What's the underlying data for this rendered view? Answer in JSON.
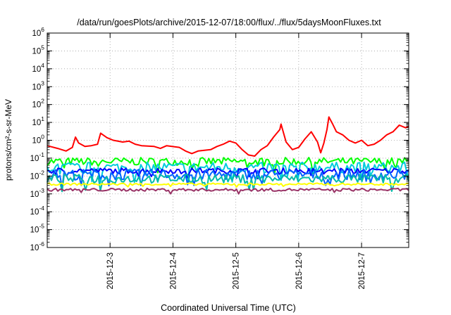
{
  "chart_data": {
    "type": "line",
    "title": "/data/run/goesPlots/archive/2015-12-07/18:00/flux/../flux/5daysMoonFluxes.txt",
    "xlabel": "Coordinated Universal Time (UTC)",
    "ylabel": "protons/cm²-s-sr-MeV",
    "y_scale": "log",
    "ylim_exp": [
      -6,
      6
    ],
    "y_tick_exponents": [
      -6,
      -5,
      -4,
      -3,
      -2,
      -1,
      0,
      1,
      2,
      3,
      4,
      5,
      6
    ],
    "y_tick_labels": [
      "10-6",
      "10-5",
      "10-4",
      "10-3",
      "10-2",
      "10-1",
      "100",
      "101",
      "102",
      "103",
      "104",
      "105",
      "106"
    ],
    "x_unit": "days (UTC)",
    "xlim": [
      "2015-12-02 00:00",
      "2015-12-07 18:00"
    ],
    "x_ticks": [
      {
        "label": "2015-12-3",
        "date": "2015-12-03 00:00"
      },
      {
        "label": "2015-12-4",
        "date": "2015-12-04 00:00"
      },
      {
        "label": "2015-12-5",
        "date": "2015-12-05 00:00"
      },
      {
        "label": "2015-12-6",
        "date": "2015-12-06 00:00"
      },
      {
        "label": "2015-12-7",
        "date": "2015-12-07 00:00"
      }
    ],
    "grid": true,
    "legend": "none",
    "series": [
      {
        "color": "#ff0000",
        "points": [
          [
            "2015-12-02 00:00",
            0.5
          ],
          [
            "2015-12-02 04:00",
            0.35
          ],
          [
            "2015-12-02 07:12",
            0.25
          ],
          [
            "2015-12-02 09:36",
            0.4
          ],
          [
            "2015-12-02 10:48",
            1.5
          ],
          [
            "2015-12-02 12:00",
            0.7
          ],
          [
            "2015-12-02 14:24",
            0.45
          ],
          [
            "2015-12-02 16:48",
            0.5
          ],
          [
            "2015-12-02 19:12",
            0.6
          ],
          [
            "2015-12-02 20:24",
            2.5
          ],
          [
            "2015-12-02 22:48",
            1.4
          ],
          [
            "2015-12-03 01:12",
            1.0
          ],
          [
            "2015-12-03 04:48",
            0.8
          ],
          [
            "2015-12-03 07:12",
            0.9
          ],
          [
            "2015-12-03 09:36",
            0.6
          ],
          [
            "2015-12-03 12:00",
            0.5
          ],
          [
            "2015-12-03 16:48",
            0.45
          ],
          [
            "2015-12-03 19:12",
            0.35
          ],
          [
            "2015-12-03 21:36",
            0.5
          ],
          [
            "2015-12-04 02:24",
            0.4
          ],
          [
            "2015-12-04 04:48",
            0.25
          ],
          [
            "2015-12-04 07:12",
            0.18
          ],
          [
            "2015-12-04 09:36",
            0.25
          ],
          [
            "2015-12-04 14:24",
            0.3
          ],
          [
            "2015-12-04 16:48",
            0.45
          ],
          [
            "2015-12-04 19:12",
            0.6
          ],
          [
            "2015-12-04 21:36",
            0.9
          ],
          [
            "2015-12-05 00:00",
            0.7
          ],
          [
            "2015-12-05 02:24",
            0.3
          ],
          [
            "2015-12-05 04:48",
            0.15
          ],
          [
            "2015-12-05 07:12",
            0.13
          ],
          [
            "2015-12-05 09:36",
            0.3
          ],
          [
            "2015-12-05 12:00",
            0.5
          ],
          [
            "2015-12-05 14:24",
            1.5
          ],
          [
            "2015-12-05 16:48",
            4.0
          ],
          [
            "2015-12-05 17:16",
            8.0
          ],
          [
            "2015-12-05 19:12",
            0.8
          ],
          [
            "2015-12-05 21:36",
            0.3
          ],
          [
            "2015-12-06 00:00",
            0.4
          ],
          [
            "2015-12-06 02:24",
            1.2
          ],
          [
            "2015-12-06 04:48",
            3.0
          ],
          [
            "2015-12-06 07:12",
            0.8
          ],
          [
            "2015-12-06 08:24",
            0.2
          ],
          [
            "2015-12-06 09:36",
            0.7
          ],
          [
            "2015-12-06 10:48",
            4.0
          ],
          [
            "2015-12-06 11:31",
            20.0
          ],
          [
            "2015-12-06 12:58",
            8.0
          ],
          [
            "2015-12-06 14:24",
            3.0
          ],
          [
            "2015-12-06 16:48",
            2.0
          ],
          [
            "2015-12-06 19:12",
            1.0
          ],
          [
            "2015-12-06 21:36",
            0.7
          ],
          [
            "2015-12-07 00:00",
            1.0
          ],
          [
            "2015-12-07 02:24",
            0.5
          ],
          [
            "2015-12-07 04:48",
            0.6
          ],
          [
            "2015-12-07 07:12",
            1.0
          ],
          [
            "2015-12-07 09:36",
            2.0
          ],
          [
            "2015-12-07 12:00",
            3.0
          ],
          [
            "2015-12-07 14:24",
            7.0
          ],
          [
            "2015-12-07 16:48",
            5.0
          ],
          [
            "2015-12-07 18:00",
            6.0
          ]
        ]
      },
      {
        "color": "#00ff00",
        "points": [
          [
            "2015-12-02 00:00",
            0.065
          ],
          [
            "2015-12-07 18:00",
            0.065
          ]
        ],
        "fluctuation_dex": 0.22
      },
      {
        "color": "#00ccdd",
        "points": [
          [
            "2015-12-02 00:00",
            0.03
          ],
          [
            "2015-12-07 18:00",
            0.03
          ]
        ],
        "fluctuation_dex": 0.3
      },
      {
        "color": "#0000ff",
        "points": [
          [
            "2015-12-02 00:00",
            0.02
          ],
          [
            "2015-12-07 18:00",
            0.02
          ]
        ],
        "fluctuation_dex": 0.15
      },
      {
        "color": "#0066ff",
        "points": [
          [
            "2015-12-02 00:00",
            0.012
          ],
          [
            "2015-12-07 18:00",
            0.012
          ]
        ],
        "fluctuation_dex": 0.3
      },
      {
        "color": "#00bbaa",
        "points": [
          [
            "2015-12-02 00:00",
            0.007
          ],
          [
            "2015-12-07 18:00",
            0.007
          ]
        ],
        "fluctuation_dex": 0.25
      },
      {
        "color": "#ffff00",
        "points": [
          [
            "2015-12-02 00:00",
            0.0035
          ],
          [
            "2015-12-07 18:00",
            0.0035
          ]
        ],
        "fluctuation_dex": 0.06
      },
      {
        "color": "#993366",
        "points": [
          [
            "2015-12-02 00:00",
            0.0017
          ],
          [
            "2015-12-07 18:00",
            0.0017
          ]
        ],
        "fluctuation_dex": 0.08
      }
    ]
  }
}
